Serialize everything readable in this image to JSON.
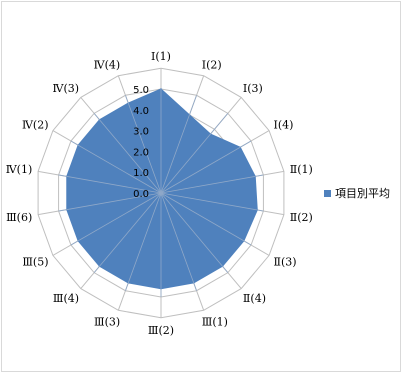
{
  "chart_data": {
    "type": "radar",
    "categories": [
      "Ⅰ(1)",
      "Ⅰ(2)",
      "Ⅰ(3)",
      "Ⅰ(4)",
      "Ⅱ(1)",
      "Ⅱ(2)",
      "Ⅱ(3)",
      "Ⅱ(4)",
      "Ⅲ(1)",
      "Ⅲ(2)",
      "Ⅲ(3)",
      "Ⅲ(4)",
      "Ⅲ(5)",
      "Ⅲ(6)",
      "Ⅳ(1)",
      "Ⅳ(2)",
      "Ⅳ(3)",
      "Ⅳ(4)"
    ],
    "series": [
      {
        "name": "項目別平均",
        "values": [
          5.0,
          4.0,
          3.7,
          4.4,
          4.6,
          4.7,
          4.6,
          4.6,
          4.6,
          4.6,
          4.6,
          4.6,
          4.6,
          4.6,
          4.6,
          4.6,
          4.6,
          4.6
        ],
        "color": "#4f81bd"
      }
    ],
    "rlim": [
      0,
      5
    ],
    "ticks": [
      "0.0",
      "1.0",
      "2.0",
      "3.0",
      "4.0",
      "5.0"
    ],
    "grid": true,
    "legend_position": "right"
  }
}
